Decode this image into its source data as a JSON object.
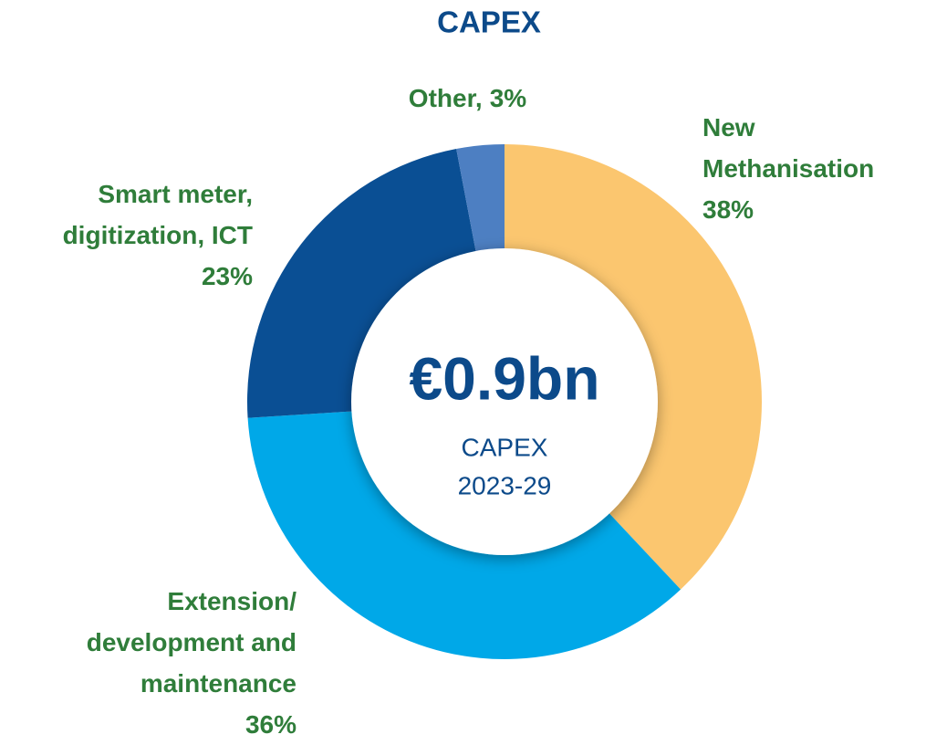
{
  "chart_data": {
    "type": "pie",
    "donut": true,
    "title": "CAPEX",
    "center_value": "€0.9bn",
    "center_label": "CAPEX",
    "center_period": "2023-29",
    "categories": [
      "New Methanisation",
      "Extension/ development and maintenance",
      "Smart meter, digitization, ICT",
      "Other,"
    ],
    "values": [
      38,
      36,
      23,
      3
    ],
    "value_labels": [
      "38%",
      "36%",
      "23%",
      "3%"
    ],
    "colors": [
      "#fbc66f",
      "#00a8e8",
      "#0a4f94",
      "#4d7fc2"
    ]
  }
}
